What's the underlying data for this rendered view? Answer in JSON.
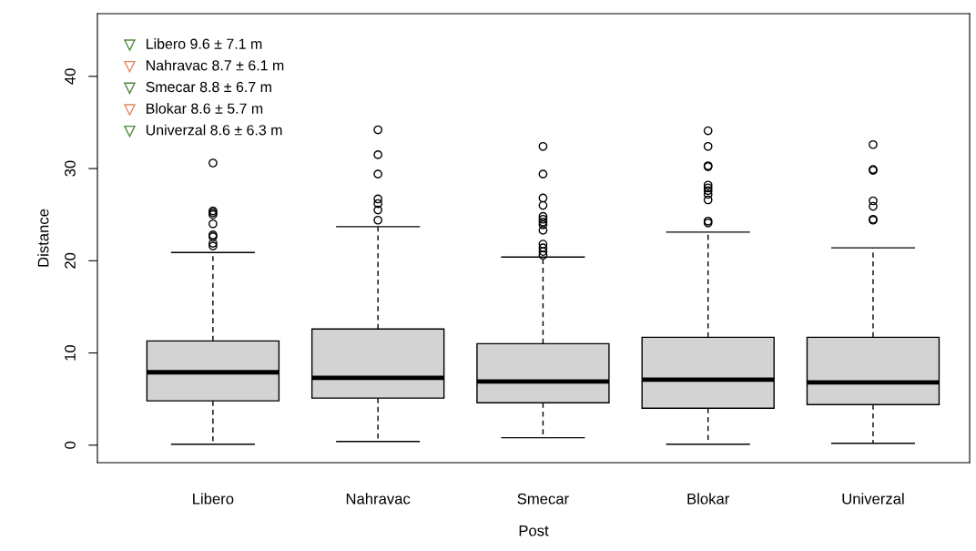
{
  "chart_data": {
    "type": "box",
    "xlabel": "Post",
    "ylabel": "Distance",
    "categories": [
      "Libero",
      "Nahravac",
      "Smecar",
      "Blokar",
      "Univerzal"
    ],
    "color": "#d3d3d3",
    "ylim": [
      -1.9,
      46.8
    ],
    "yticks": [
      0,
      10,
      20,
      30,
      40
    ],
    "grid": false,
    "boxes": [
      {
        "low": 0.1,
        "q1": 4.8,
        "median": 7.9,
        "q3": 11.3,
        "high": 20.9,
        "outliers": [
          30.6,
          25.4,
          25.2,
          25.0,
          24.0,
          22.8,
          22.6,
          21.9,
          21.6
        ]
      },
      {
        "low": 0.4,
        "q1": 5.1,
        "median": 7.3,
        "q3": 12.6,
        "high": 23.7,
        "outliers": [
          34.2,
          31.5,
          29.4,
          26.7,
          26.2,
          25.5,
          24.4
        ]
      },
      {
        "low": 0.8,
        "q1": 4.6,
        "median": 6.9,
        "q3": 11.0,
        "high": 20.4,
        "outliers": [
          32.4,
          29.4,
          26.8,
          26.0,
          24.8,
          24.5,
          24.2,
          23.9,
          23.3,
          21.8,
          21.4,
          21.0,
          20.6
        ]
      },
      {
        "low": 0.1,
        "q1": 4.0,
        "median": 7.1,
        "q3": 11.7,
        "high": 23.1,
        "outliers": [
          34.1,
          32.4,
          30.3,
          30.2,
          28.2,
          27.9,
          27.6,
          27.2,
          26.6,
          24.3,
          24.1
        ]
      },
      {
        "low": 0.2,
        "q1": 4.4,
        "median": 6.8,
        "q3": 11.7,
        "high": 21.4,
        "outliers": [
          32.6,
          29.9,
          29.8,
          26.5,
          25.9,
          24.5,
          24.4
        ]
      }
    ],
    "annotations": [
      "Libero 9.6 ± 7.1 m",
      "Nahravac 8.7 ± 6.1 m",
      "Smecar 8.8 ± 6.7 m",
      "Blokar 8.6 ± 5.7 m",
      "Univerzal 8.6 ± 6.3 m"
    ]
  }
}
